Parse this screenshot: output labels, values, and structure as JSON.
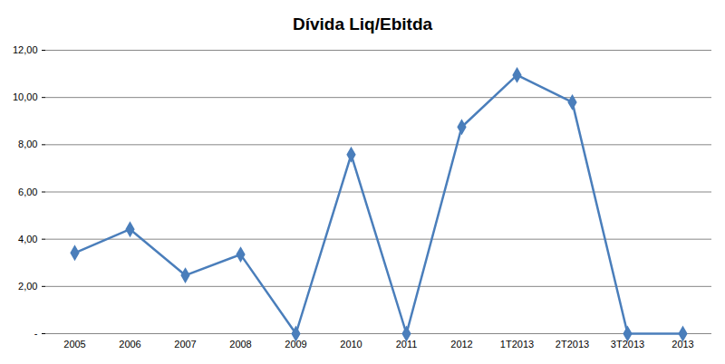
{
  "chart_data": {
    "type": "line",
    "title": "Dívida Liq/Ebitda",
    "categories": [
      "2005",
      "2006",
      "2007",
      "2008",
      "2009",
      "2010",
      "2011",
      "2012",
      "1T2013",
      "2T2013",
      "3T2013",
      "2013"
    ],
    "values": [
      3.42,
      4.42,
      2.47,
      3.35,
      0,
      7.58,
      0,
      8.75,
      10.95,
      9.8,
      0,
      0
    ],
    "color": "#4a7ebb",
    "marker": "diamond",
    "ylim": [
      0,
      12
    ],
    "yticks": [
      {
        "value": 0,
        "label": "-"
      },
      {
        "value": 2,
        "label": "2,00"
      },
      {
        "value": 4,
        "label": "4,00"
      },
      {
        "value": 6,
        "label": "6,00"
      },
      {
        "value": 8,
        "label": "8,00"
      },
      {
        "value": 10,
        "label": "10,00"
      },
      {
        "value": 12,
        "label": "12,00"
      }
    ],
    "grid": true
  }
}
